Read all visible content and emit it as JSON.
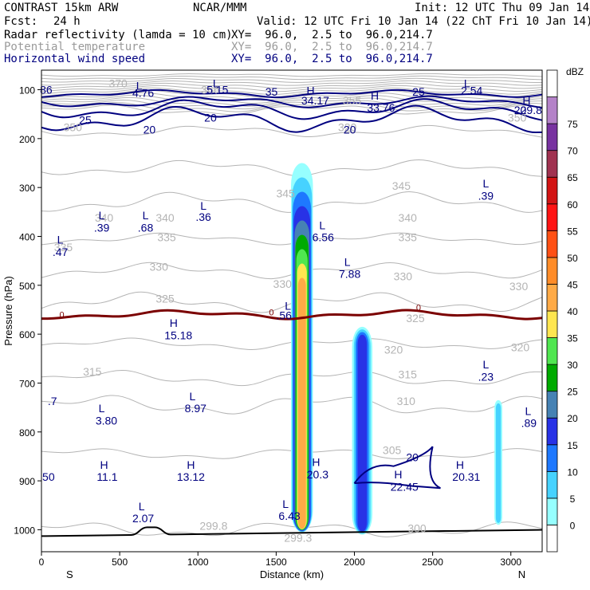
{
  "header": {
    "model": "CONTRAST 15km ARW",
    "center": "NCAR/MMM",
    "init": "Init: 12 UTC Thu 09 Jan 14",
    "fcst_label": "Fcst:",
    "fcst_value": "24 h",
    "valid": "Valid: 12 UTC Fri 10 Jan 14 (22 ChT Fri 10 Jan 14)",
    "fields": [
      {
        "name": "Radar reflectivity (lamda = 10 cm)",
        "xy": "XY=  96.0,  2.5 to  96.0,214.7"
      },
      {
        "name": "Potential temperature",
        "xy": "XY=  96.0,  2.5 to  96.0,214.7"
      },
      {
        "name": "Horizontal wind speed",
        "xy": "XY=  96.0,  2.5 to  96.0,214.7"
      }
    ]
  },
  "colors": {
    "theta": "#b4b4b4",
    "wind": "#000080",
    "freezing": "#7b0000",
    "terrain": "#000000"
  },
  "chart_data": {
    "type": "cross-section",
    "xlabel": "Distance (km)",
    "ylabel": "Pressure (hPa)",
    "xlim": [
      0,
      3200
    ],
    "ylim": [
      1045,
      60
    ],
    "xticks": [
      0,
      500,
      1000,
      1500,
      2000,
      2500,
      3000
    ],
    "yticks": [
      100,
      200,
      300,
      400,
      500,
      600,
      700,
      800,
      900,
      1000
    ],
    "x_end_labels": {
      "left": "S",
      "right": "N"
    },
    "colorbar": {
      "unit": "dBZ",
      "levels": [
        0,
        5,
        10,
        15,
        20,
        25,
        30,
        35,
        40,
        45,
        50,
        55,
        60,
        65,
        70,
        75
      ],
      "colors": [
        "#ffffff",
        "#96ffff",
        "#46d2ff",
        "#1e78ff",
        "#2832e6",
        "#4682b4",
        "#00aa00",
        "#50e650",
        "#ffe650",
        "#ffaa46",
        "#ff8c28",
        "#ff5014",
        "#ff1414",
        "#d21414",
        "#a03250",
        "#7832a0",
        "#b482c8",
        "#ffffff"
      ]
    },
    "reflectivity_cells": [
      {
        "x_center": 1665,
        "p_top": 250,
        "p_bottom": 1005,
        "max_dbz": 45
      },
      {
        "x_center": 2050,
        "p_top": 585,
        "p_bottom": 1010,
        "max_dbz": 20
      },
      {
        "x_center": 2920,
        "p_top": 735,
        "p_bottom": 990,
        "max_dbz": 10
      }
    ],
    "theta_labels": [
      {
        "text": "345",
        "x": 1560,
        "p": 320
      },
      {
        "text": "345",
        "x": 2300,
        "p": 305
      },
      {
        "text": "340",
        "x": 400,
        "p": 370
      },
      {
        "text": "340",
        "x": 790,
        "p": 370
      },
      {
        "text": "340",
        "x": 2340,
        "p": 370
      },
      {
        "text": "335",
        "x": 140,
        "p": 430
      },
      {
        "text": "335",
        "x": 800,
        "p": 410
      },
      {
        "text": "335",
        "x": 2340,
        "p": 410
      },
      {
        "text": "330",
        "x": 750,
        "p": 470
      },
      {
        "text": "330",
        "x": 1540,
        "p": 505
      },
      {
        "text": "330",
        "x": 2310,
        "p": 490
      },
      {
        "text": "330",
        "x": 3050,
        "p": 510
      },
      {
        "text": "325",
        "x": 790,
        "p": 535
      },
      {
        "text": "325",
        "x": 2390,
        "p": 575
      },
      {
        "text": "320",
        "x": 2250,
        "p": 640
      },
      {
        "text": "320",
        "x": 3060,
        "p": 635
      },
      {
        "text": "315",
        "x": 325,
        "p": 685
      },
      {
        "text": "315",
        "x": 2340,
        "p": 690
      },
      {
        "text": "310",
        "x": 2330,
        "p": 745
      },
      {
        "text": "305",
        "x": 2240,
        "p": 845
      },
      {
        "text": "350",
        "x": 3040,
        "p": 165
      },
      {
        "text": "355",
        "x": 1985,
        "p": 130
      },
      {
        "text": "320",
        "x": 1955,
        "p": 185
      },
      {
        "text": "350",
        "x": 200,
        "p": 185
      },
      {
        "text": "370",
        "x": 490,
        "p": 95
      },
      {
        "text": "366",
        "x": 1080,
        "p": 108
      },
      {
        "text": "299.8",
        "x": 1100,
        "p": 1000
      },
      {
        "text": "299.3",
        "x": 1640,
        "p": 1025
      },
      {
        "text": "300",
        "x": 2400,
        "p": 1005
      }
    ],
    "wind_labels": [
      {
        "text": "25",
        "x": 280,
        "p": 170
      },
      {
        "text": "20",
        "x": 690,
        "p": 190
      },
      {
        "text": "20",
        "x": 1080,
        "p": 165
      },
      {
        "text": "35",
        "x": 1470,
        "p": 112
      },
      {
        "text": "25",
        "x": 2410,
        "p": 112
      },
      {
        "text": "20",
        "x": 3060,
        "p": 150
      },
      {
        "text": "20",
        "x": 1970,
        "p": 190
      },
      {
        "text": "20",
        "x": 2370,
        "p": 860
      }
    ],
    "freezing_labels": [
      {
        "text": "0",
        "x": 130,
        "p": 560
      },
      {
        "text": "0",
        "x": 1470,
        "p": 555
      },
      {
        "text": "0",
        "x": 2410,
        "p": 545
      }
    ],
    "extrema": [
      {
        "kind": "L",
        "value": "4.76",
        "x": 625,
        "p": 100,
        "vx": 650,
        "vp": 115
      },
      {
        "kind": "L",
        "value": "5.15",
        "x": 1115,
        "p": 95,
        "vx": 1125,
        "vp": 108
      },
      {
        "kind": "H",
        "value": "34.17",
        "x": 1720,
        "p": 110,
        "vx": 1750,
        "vp": 130
      },
      {
        "kind": "H",
        "value": "33.76",
        "x": 2130,
        "p": 120,
        "vx": 2170,
        "vp": 145
      },
      {
        "kind": "L",
        "value": "2.54",
        "x": 2720,
        "p": 95,
        "vx": 2750,
        "vp": 110
      },
      {
        "kind": "H",
        "value": "29.8",
        "x": 3100,
        "p": 130,
        "vx": 3130,
        "vp": 150
      },
      {
        "kind": "",
        "value": "86",
        "x": 0,
        "p": 0,
        "vx": 30,
        "vp": 108
      },
      {
        "kind": "L",
        "value": ".39",
        "x": 2840,
        "p": 300,
        "vx": 2840,
        "vp": 325
      },
      {
        "kind": "L",
        "value": ".39",
        "x": 385,
        "p": 365,
        "vx": 385,
        "vp": 390
      },
      {
        "kind": "L",
        "value": ".68",
        "x": 665,
        "p": 365,
        "vx": 665,
        "vp": 390
      },
      {
        "kind": "L",
        "value": ".36",
        "x": 1035,
        "p": 345,
        "vx": 1035,
        "vp": 368
      },
      {
        "kind": "L",
        "value": "6.56",
        "x": 1795,
        "p": 385,
        "vx": 1800,
        "vp": 410
      },
      {
        "kind": "L",
        "value": ".47",
        "x": 120,
        "p": 415,
        "vx": 120,
        "vp": 440
      },
      {
        "kind": "L",
        "value": "7.88",
        "x": 1955,
        "p": 460,
        "vx": 1970,
        "vp": 485
      },
      {
        "kind": "L",
        "value": ".56",
        "x": 1575,
        "p": 550,
        "vx": 1550,
        "vp": 570
      },
      {
        "kind": "H",
        "value": "15.18",
        "x": 845,
        "p": 585,
        "vx": 875,
        "vp": 610
      },
      {
        "kind": "L",
        "value": ".23",
        "x": 2840,
        "p": 670,
        "vx": 2840,
        "vp": 695
      },
      {
        "kind": "",
        "value": ".7",
        "x": 0,
        "p": 0,
        "vx": 70,
        "vp": 745
      },
      {
        "kind": "L",
        "value": "8.97",
        "x": 965,
        "p": 735,
        "vx": 985,
        "vp": 760
      },
      {
        "kind": "L",
        "value": "3.80",
        "x": 385,
        "p": 760,
        "vx": 415,
        "vp": 785
      },
      {
        "kind": "L",
        "value": ".89",
        "x": 3110,
        "p": 765,
        "vx": 3115,
        "vp": 790
      },
      {
        "kind": "H",
        "value": "20.3",
        "x": 1755,
        "p": 870,
        "vx": 1765,
        "vp": 895
      },
      {
        "kind": "H",
        "value": "20.31",
        "x": 2675,
        "p": 875,
        "vx": 2715,
        "vp": 900
      },
      {
        "kind": "H",
        "value": "22.45",
        "x": 2280,
        "p": 895,
        "vx": 2320,
        "vp": 920
      },
      {
        "kind": "H",
        "value": "11.1",
        "x": 400,
        "p": 875,
        "vx": 420,
        "vp": 900
      },
      {
        "kind": "H",
        "value": "13.12",
        "x": 955,
        "p": 875,
        "vx": 955,
        "vp": 900
      },
      {
        "kind": "",
        "value": "50",
        "x": 0,
        "p": 0,
        "vx": 45,
        "vp": 900
      },
      {
        "kind": "L",
        "value": "2.07",
        "x": 640,
        "p": 960,
        "vx": 650,
        "vp": 985
      },
      {
        "kind": "L",
        "value": "6.43",
        "x": 1560,
        "p": 955,
        "vx": 1585,
        "vp": 980
      }
    ]
  }
}
